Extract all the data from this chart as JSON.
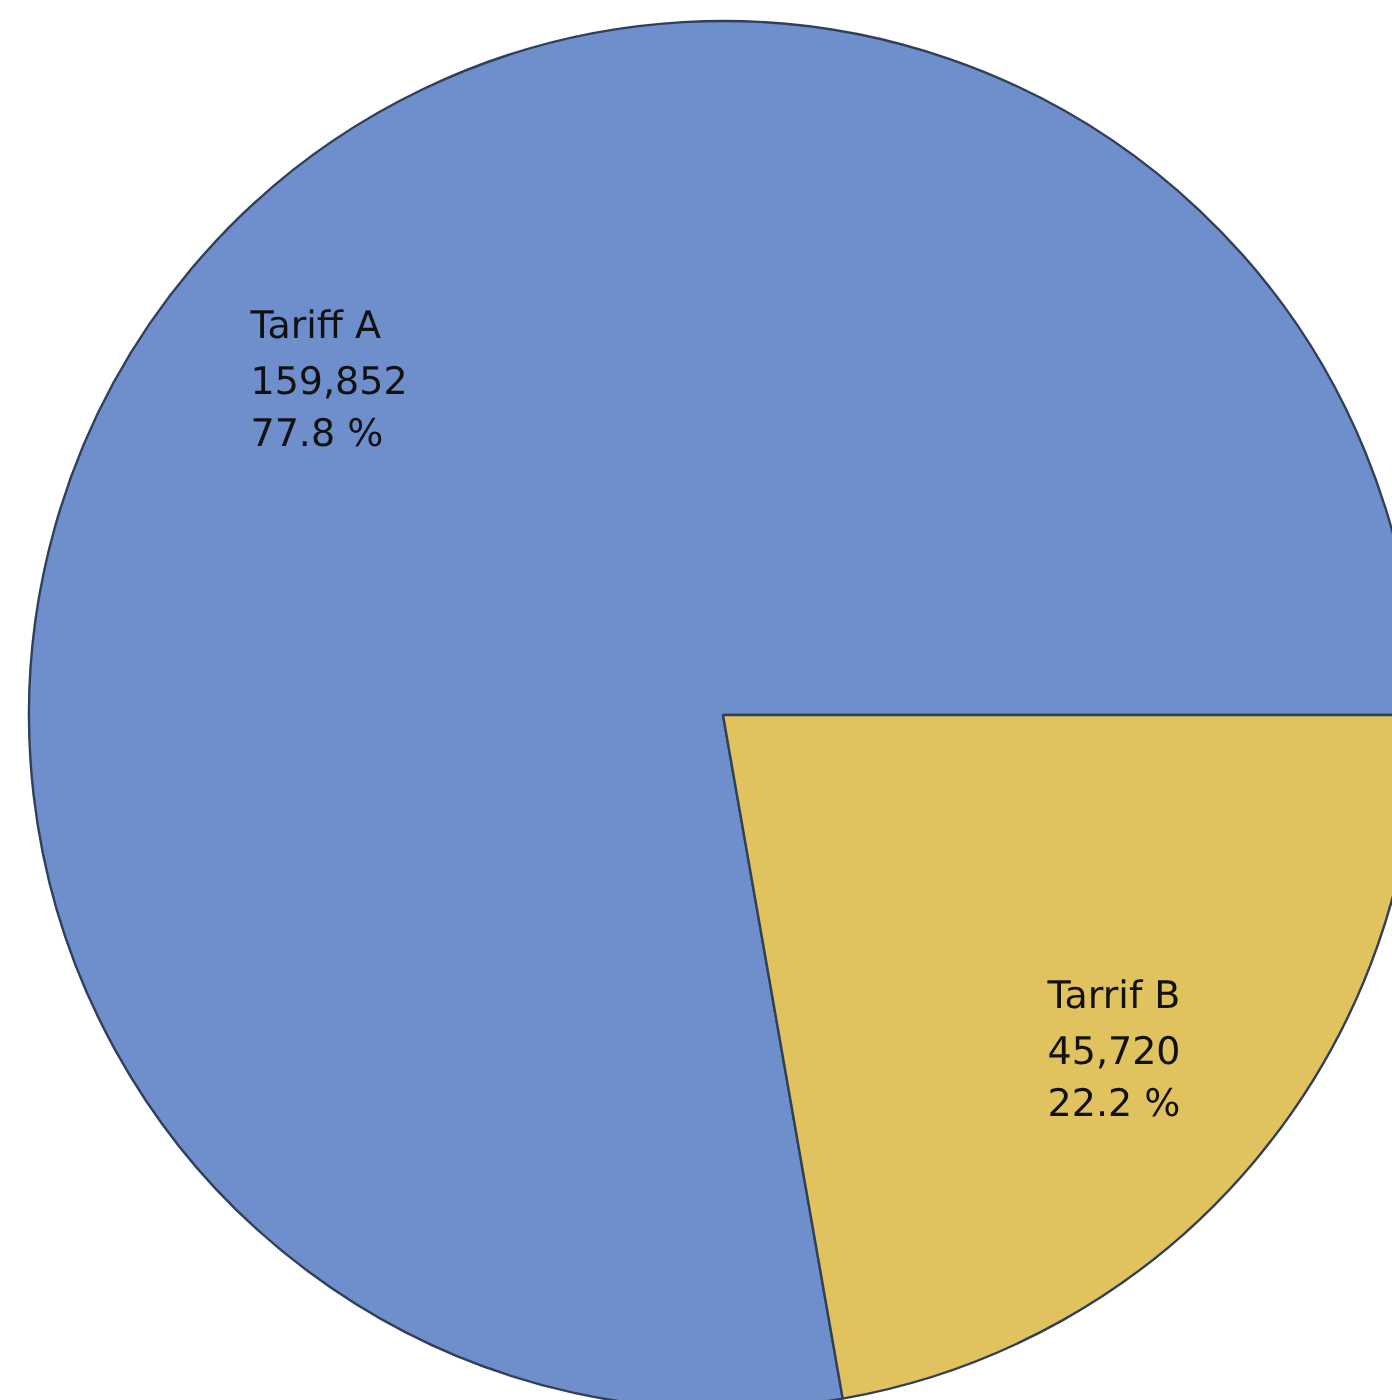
{
  "chart_data": {
    "type": "pie",
    "categories": [
      "Tariff A",
      "Tarrif B"
    ],
    "values": [
      159852,
      45720
    ],
    "colors": [
      "#6f8fcc",
      "#e0c25e"
    ],
    "value_labels": [
      "159,852\n77.8 %",
      "45,720\n22.2 %"
    ]
  }
}
